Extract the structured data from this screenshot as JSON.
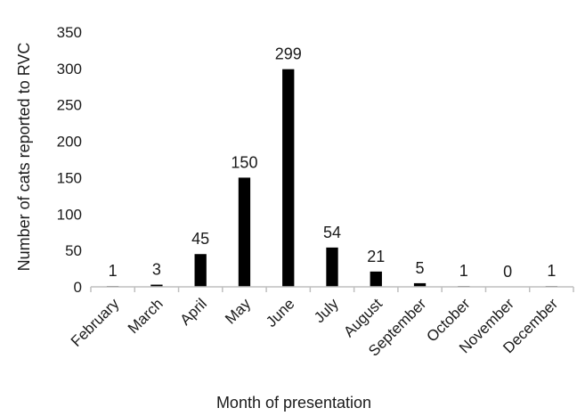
{
  "chart_data": {
    "type": "bar",
    "title": "",
    "xlabel": "Month of presentation",
    "ylabel": "Number of cats reported to RVC",
    "categories": [
      "February",
      "March",
      "April",
      "May",
      "June",
      "July",
      "August",
      "September",
      "October",
      "November",
      "December"
    ],
    "values": [
      1,
      3,
      45,
      150,
      299,
      54,
      21,
      5,
      1,
      0,
      1
    ],
    "data_labels": [
      "1",
      "3",
      "45",
      "150",
      "299",
      "54",
      "21",
      "5",
      "1",
      "0",
      "1"
    ],
    "yticks": [
      0,
      50,
      100,
      150,
      200,
      250,
      300,
      350
    ],
    "ylim": [
      0,
      350
    ],
    "grid": false,
    "legend": "none",
    "bar_color": "#000000",
    "axis_color": "#bfbfbf"
  }
}
